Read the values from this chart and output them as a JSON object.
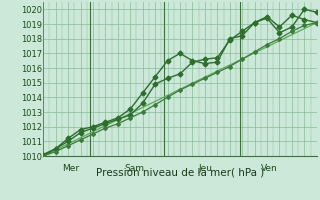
{
  "background_color": "#cce8d8",
  "grid_color": "#88bb99",
  "xlabel": "Pression niveau de la mer( hPa )",
  "ylim": [
    1010,
    1020.5
  ],
  "yticks": [
    1010,
    1011,
    1012,
    1013,
    1014,
    1015,
    1016,
    1017,
    1018,
    1019,
    1020
  ],
  "day_labels": [
    "Mer",
    "Sam",
    "Jeu",
    "Ven"
  ],
  "series": [
    {
      "x": [
        0,
        1,
        2,
        3,
        4,
        5,
        6,
        7,
        8,
        9,
        10,
        11,
        12,
        13,
        14,
        15,
        16,
        17,
        18,
        19,
        20,
        21,
        22
      ],
      "y": [
        1010.0,
        1010.5,
        1011.2,
        1011.8,
        1012.0,
        1012.3,
        1012.6,
        1013.2,
        1014.3,
        1015.4,
        1016.5,
        1017.0,
        1016.5,
        1016.3,
        1016.4,
        1018.0,
        1018.2,
        1019.1,
        1019.5,
        1018.8,
        1019.6,
        1019.3,
        1019.1
      ],
      "style": "-",
      "marker": "D",
      "markersize": 2.5,
      "linewidth": 1.0,
      "color": "#2d6e2d"
    },
    {
      "x": [
        0,
        1,
        2,
        3,
        4,
        5,
        6,
        7,
        8,
        9,
        10,
        11,
        12,
        13,
        14,
        15,
        16,
        17,
        18,
        19,
        20,
        21,
        22
      ],
      "y": [
        1010.1,
        1010.5,
        1011.0,
        1011.6,
        1011.9,
        1012.2,
        1012.5,
        1012.8,
        1013.6,
        1014.9,
        1015.3,
        1015.6,
        1016.4,
        1016.6,
        1016.7,
        1017.9,
        1018.5,
        1019.1,
        1019.4,
        1018.4,
        1018.8,
        1020.0,
        1019.8
      ],
      "style": "-",
      "marker": "D",
      "markersize": 2.5,
      "linewidth": 1.0,
      "color": "#2d6e2d"
    },
    {
      "x": [
        0,
        1,
        2,
        3,
        4,
        5,
        6,
        7,
        8,
        9,
        10,
        11,
        12,
        13,
        14,
        15,
        16,
        17,
        18,
        19,
        20,
        21,
        22
      ],
      "y": [
        1010.0,
        1010.3,
        1010.7,
        1011.1,
        1011.5,
        1011.9,
        1012.2,
        1012.6,
        1013.0,
        1013.5,
        1014.0,
        1014.5,
        1014.9,
        1015.3,
        1015.7,
        1016.1,
        1016.6,
        1017.1,
        1017.6,
        1018.0,
        1018.5,
        1018.9,
        1019.1
      ],
      "style": "-",
      "marker": "D",
      "markersize": 2.0,
      "linewidth": 0.9,
      "color": "#3d7a3d"
    },
    {
      "x": [
        0,
        22
      ],
      "y": [
        1010.0,
        1019.1
      ],
      "style": "-",
      "marker": null,
      "markersize": 0,
      "linewidth": 0.9,
      "color": "#5aaa5a"
    }
  ],
  "vline_color": "#3d6e3d",
  "fontsize_tick": 6,
  "fontsize_xlabel": 7.5,
  "fontsize_daylabel": 6.5
}
